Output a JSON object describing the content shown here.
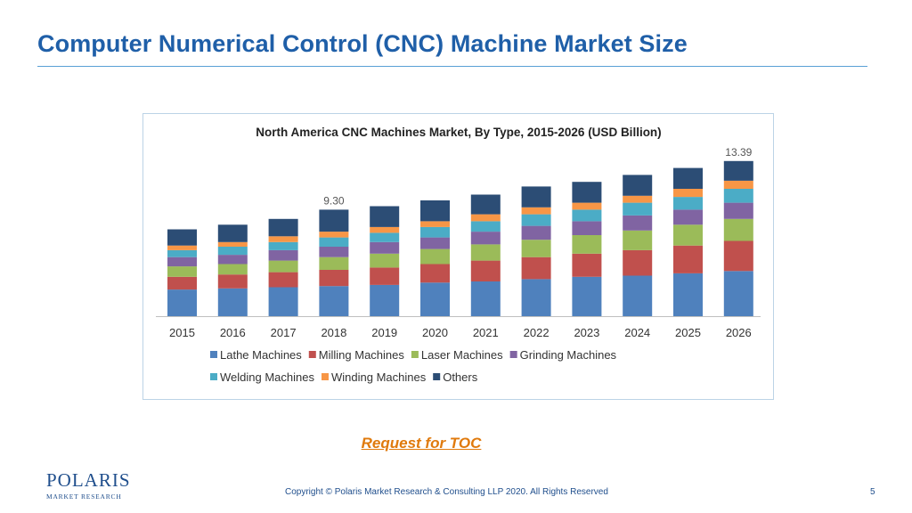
{
  "slide": {
    "title": "Computer Numerical Control (CNC) Machine Market Size",
    "toc_link": "Request for TOC",
    "logo_text": "POLARIS",
    "logo_sub": "MARKET RESEARCH",
    "copyright": "Copyright © Polaris Market Research & Consulting LLP 2020. All Rights Reserved",
    "page_number": "5"
  },
  "colors": {
    "title": "#1f5fa8",
    "link": "#e07a0c",
    "Lathe Machines": "#4f81bd",
    "Milling Machines": "#c0504d",
    "Laser Machines": "#9bbb59",
    "Grinding Machines": "#8064a2",
    "Welding Machines": "#4bacc6",
    "Winding Machines": "#f79646",
    "Others": "#2c4d75"
  },
  "chart_data": {
    "type": "bar",
    "stacked": true,
    "title": "North America CNC Machines Market, By Type, 2015-2026  (USD Billion)",
    "categories": [
      "2015",
      "2016",
      "2017",
      "2018",
      "2019",
      "2020",
      "2021",
      "2022",
      "2023",
      "2024",
      "2025",
      "2026"
    ],
    "series": [
      {
        "name": "Lathe Machines",
        "values": [
          2.3,
          2.4,
          2.5,
          2.6,
          2.7,
          2.9,
          3.0,
          3.2,
          3.4,
          3.5,
          3.7,
          3.9
        ]
      },
      {
        "name": "Milling Machines",
        "values": [
          1.1,
          1.2,
          1.3,
          1.4,
          1.5,
          1.6,
          1.8,
          1.9,
          2.0,
          2.2,
          2.4,
          2.6
        ]
      },
      {
        "name": "Laser Machines",
        "values": [
          0.9,
          0.9,
          1.0,
          1.1,
          1.2,
          1.3,
          1.4,
          1.5,
          1.6,
          1.7,
          1.8,
          1.9
        ]
      },
      {
        "name": "Grinding Machines",
        "values": [
          0.8,
          0.8,
          0.9,
          0.9,
          1.0,
          1.0,
          1.1,
          1.2,
          1.2,
          1.3,
          1.3,
          1.4
        ]
      },
      {
        "name": "Welding Machines",
        "values": [
          0.6,
          0.7,
          0.7,
          0.8,
          0.8,
          0.9,
          0.9,
          1.0,
          1.0,
          1.1,
          1.1,
          1.2
        ]
      },
      {
        "name": "Winding Machines",
        "values": [
          0.4,
          0.4,
          0.5,
          0.5,
          0.5,
          0.5,
          0.6,
          0.6,
          0.6,
          0.6,
          0.7,
          0.7
        ]
      },
      {
        "name": "Others",
        "values": [
          1.4,
          1.5,
          1.5,
          1.9,
          1.8,
          1.8,
          1.7,
          1.8,
          1.8,
          1.8,
          1.8,
          1.7
        ]
      }
    ],
    "annotations": [
      {
        "category": "2018",
        "text": "9.30"
      },
      {
        "category": "2026",
        "text": "13.39"
      }
    ],
    "xlabel": "",
    "ylabel": "",
    "ylim": [
      0,
      15
    ],
    "grid": false,
    "legend": "bottom"
  }
}
